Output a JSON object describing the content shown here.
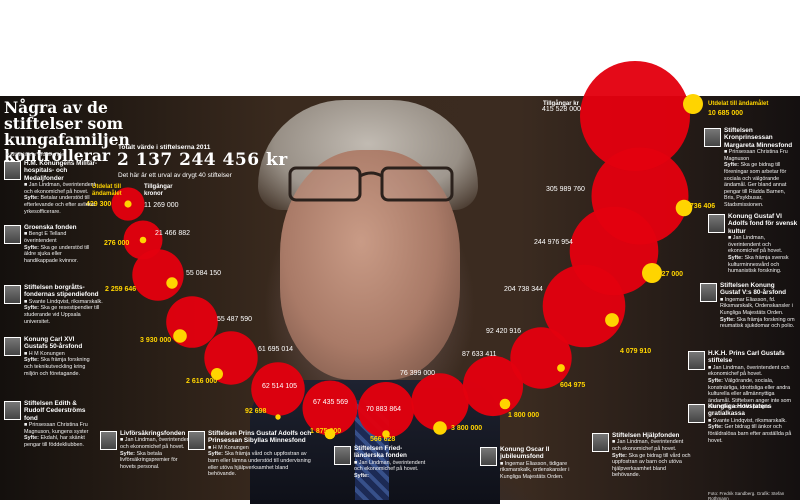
{
  "headline": "Några av de stiftelser som kungafamiljen kontrollerar",
  "legend": "= Stiftelsens ordförande",
  "total": {
    "label": "Totalt värde i stiftelserna 2011",
    "value": "2 137 244 456 kr",
    "note": "Det här är ett urval av drygt 40 stiftelser"
  },
  "chart_data": {
    "type": "bubble",
    "capital_label_header": "Tillgängar kronor",
    "payout_label_header": "Utdelat till ändamålet",
    "capital_label_main": "Tillgångar kr",
    "series": [
      {
        "name": "Tillgångar kronor",
        "values": [
          11269000,
          21466882,
          55084150,
          55487590,
          61695014,
          62514105,
          67435569,
          70883864,
          76399000,
          87633411,
          92420916,
          204738344,
          244976954,
          305989760,
          415528000
        ]
      },
      {
        "name": "Utdelat till ändamålet",
        "values": [
          429300,
          276000,
          2259646,
          3930000,
          2616000,
          92698,
          1875000,
          566628,
          3800000,
          1800000,
          604975,
          4079910,
          10727000,
          6736406,
          10685000
        ]
      }
    ]
  },
  "bubbles": [
    {
      "cap": "11 269 000",
      "pay": "429 300"
    },
    {
      "cap": "21 466 882",
      "pay": "276 000"
    },
    {
      "cap": "55 084 150",
      "pay": "2 259 646"
    },
    {
      "cap": "55 487 590",
      "pay": "3 930 000"
    },
    {
      "cap": "61 695 014",
      "pay": "2 616 000"
    },
    {
      "cap": "62 514 105",
      "pay": "92 698"
    },
    {
      "cap": "67 435 569",
      "pay": "1 875 000"
    },
    {
      "cap": "70 883 864",
      "pay": "566 628"
    },
    {
      "cap": "76 399 000",
      "pay": "3 800 000"
    },
    {
      "cap": "87 633 411",
      "pay": "1 800 000"
    },
    {
      "cap": "92 420 916",
      "pay": "604 975"
    },
    {
      "cap": "204 738 344",
      "pay": "4 079 910"
    },
    {
      "cap": "244 976 954",
      "pay": "10 727 000"
    },
    {
      "cap": "305 989 760",
      "pay": "6 736 406"
    },
    {
      "cap": "415 528 000",
      "pay": "10 685 000"
    }
  ],
  "foundations": [
    {
      "title": "H.M. Konungens Militär-hospitals- och Medaljfonder",
      "people": "Jan Lindman, överintendent och ekonomichef på hovet.",
      "purpose_label": "Syfte:",
      "purpose": "Betalar understöd till efterlevande och efter avlidna yrkesofficerare."
    },
    {
      "title": "Groenska fonden",
      "people": "Bengt E Telland överintendent",
      "purpose_label": "Syfte:",
      "purpose": "Ska ge understöd till äldre sjuka eller handikappade kvinnor."
    },
    {
      "title": "Stiftelsen borgråtts-fondernas stipendiefond",
      "people": "Svante Lindqvist, riksmarskalk.",
      "purpose_label": "Syfte:",
      "purpose": "Ska ge resestipendier till studerande vid Uppsala universitet."
    },
    {
      "title": "Konung Carl XVI Gustafs 50-årsfond",
      "people": "H M Konungen",
      "purpose_label": "Syfte:",
      "purpose": "Ska främja forskning och teknikutveckling kring miljön och företagande."
    },
    {
      "title": "Stiftelsen Edith & Rudolf Cederströms fond",
      "people": "Prinsessan Christina Fru Magnuson, kungens syster",
      "purpose_label": "Syfte:",
      "purpose": "Ekdahl, har skänkt pengar till föddekliubben."
    },
    {
      "title": "Livförsäkringsfonden",
      "people": "Jan Lindman, överintendent och ekonomichef på hovet.",
      "purpose_label": "Syfte:",
      "purpose": "Ska betala livförsäkringspremier för hovets personal."
    },
    {
      "title": "Stiftelsen Prins Gustaf Adolfs och Prinsessan Sibyllas Minnesfond",
      "people": "H M Konungen",
      "purpose_label": "Syfte:",
      "purpose": "Ska främja vård och uppfostran av barn eller lämna understöd till undervisning eller utöva hjälpverksamhet bland behövande."
    },
    {
      "title": "Stiftelsen Fried-länderska fonden",
      "people": "Jan Lindman, överintendent och ekonomichef på hovet.",
      "purpose_label": "Syfte:",
      "purpose": ""
    },
    {
      "title": "Konung Oscar II jubileumsfond",
      "people": "Ingemar Eliasson, tidigare riksmarskalk, ordenskansler i Kungliga Majestäts Orden.",
      "purpose_label": "",
      "purpose": ""
    },
    {
      "title": "Stiftelsen Hjälpfonden",
      "people": "Jan Lindman, överintendent och ekonomichef på hovet.",
      "purpose_label": "Syfte:",
      "purpose": "Ska ge bidrag till vård och uppfostran av barn och utöva hjälpverksamhet bland behövande."
    },
    {
      "title": "Kungliga Hovstatens gratialkassa",
      "people": "Svante Lindqvist, riksmarskalk.",
      "purpose_label": "Syfte:",
      "purpose": "Ger bidrag till änkor och föräldralösa barn efter anställda på hovet."
    },
    {
      "title": "H.K.H. Prins Carl Gustafs stiftelse",
      "people": "Jan Lindman, överintendent och ekonomichef på hovet.",
      "purpose_label": "Syfte:",
      "purpose": "Välgörande, sociala, konstnärliga, idrottsliga eller andra kulturella eller allmännyttiga ändamål. Stiftelsen anger inte som eller vilka som fått pengar."
    },
    {
      "title": "Stiftelsen Konung Gustaf V:s 80-årsfond",
      "people": "Ingemar Eliasson, fd. Riksmarskalk, Ordenskansler i Kungliga Majestäts Orden.",
      "purpose_label": "Syfte:",
      "purpose": "Ska främja forskning om reumatisk sjukdomar och polio."
    },
    {
      "title": "Konung Gustaf VI Adolfs fond för svensk kultur",
      "people": "Jan Lindman, överintendent och ekonomichef på hovet.",
      "purpose_label": "Syfte:",
      "purpose": "Ska främja svensk kulturminnesvård och humanistisk forskning."
    },
    {
      "title": "Stiftelsen Kronprinsessan Margareta Minnesfond",
      "people": "Prinsessan Christina Fru Magnuson",
      "purpose_label": "Syfte:",
      "purpose": "Ska ge bidrag till föreningar som arbetar för sociala och välgörande ändamål. Ger bland annat pengar till Rädda Barnen, Bris, Psykbusar, Stadsmissionen."
    }
  ],
  "credit": "Foto: Fredrik Sandberg. Grafik: Stefan Rothmann",
  "colors": {
    "bubble": "#e3000f",
    "payout": "#ffd400",
    "text": "#ffffff"
  }
}
